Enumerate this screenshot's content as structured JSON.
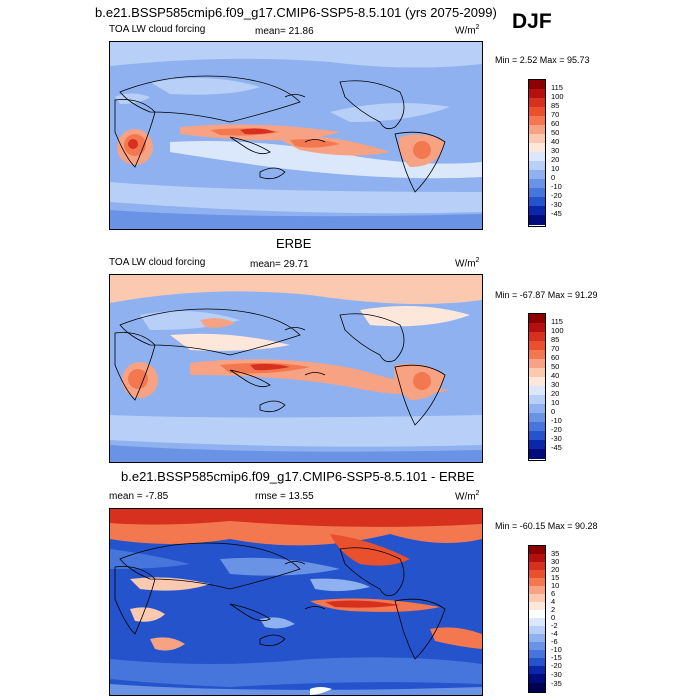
{
  "title": "b.e21.BSSP585cmip6.f09_g17.CMIP6-SSP5-8.5.101 (yrs 2075-2099)",
  "season": "DJF",
  "panels": [
    {
      "label": "TOA LW cloud forcing",
      "mean_text": "mean=  21.86",
      "units": "W/m",
      "units_sup": "2",
      "minmax": "Min =   2.52 Max =  95.73",
      "levels": [
        "115",
        "100",
        "85",
        "70",
        "60",
        "50",
        "40",
        "30",
        "20",
        "10",
        "0",
        "-10",
        "-20",
        "-30",
        "-45"
      ],
      "colors": [
        "#8b0000",
        "#b50f0f",
        "#d8301f",
        "#e8502e",
        "#f4784f",
        "#f8a284",
        "#fbc8b0",
        "#fde6da",
        "#dbe7fb",
        "#b8d0f7",
        "#8fb1ef",
        "#6a92e5",
        "#4675db",
        "#2453cc",
        "#0b26a8",
        "#000c79"
      ]
    },
    {
      "heading": "ERBE",
      "label": "TOA LW cloud forcing",
      "mean_text": "mean=  29.71",
      "units": "W/m",
      "units_sup": "2",
      "minmax": "Min = -67.87 Max =  91.29",
      "levels": [
        "115",
        "100",
        "85",
        "70",
        "60",
        "50",
        "40",
        "30",
        "20",
        "10",
        "0",
        "-10",
        "-20",
        "-30",
        "-45"
      ],
      "colors": [
        "#8b0000",
        "#b50f0f",
        "#d8301f",
        "#e8502e",
        "#f4784f",
        "#f8a284",
        "#fbc8b0",
        "#fde6da",
        "#dbe7fb",
        "#b8d0f7",
        "#8fb1ef",
        "#6a92e5",
        "#4675db",
        "#2453cc",
        "#0b26a8",
        "#000c79"
      ]
    },
    {
      "heading": "b.e21.BSSP585cmip6.f09_g17.CMIP6-SSP5-8.5.101 - ERBE",
      "mean_text": "mean =  -7.85",
      "rmse_text": "rmse =  13.55",
      "units": "W/m",
      "units_sup": "2",
      "minmax": "Min = -60.15 Max =  90.28",
      "levels": [
        "35",
        "30",
        "20",
        "15",
        "10",
        "6",
        "4",
        "2",
        "0",
        "-2",
        "-4",
        "-6",
        "-10",
        "-15",
        "-20",
        "-30",
        "-35"
      ],
      "colors": [
        "#8b0000",
        "#b50f0f",
        "#d8301f",
        "#e8502e",
        "#f4784f",
        "#f8a284",
        "#fbc8b0",
        "#fde6da",
        "#ffffff",
        "#dbe7fb",
        "#b8d0f7",
        "#8fb1ef",
        "#6a92e5",
        "#4675db",
        "#2453cc",
        "#0b26a8",
        "#000c79",
        "#000050"
      ]
    }
  ],
  "chart_data": [
    {
      "type": "heatmap",
      "title": "TOA LW cloud forcing",
      "subtitle": "b.e21.BSSP585cmip6.f09_g17.CMIP6-SSP5-8.5.101 (yrs 2075-2099), DJF",
      "mean": 21.86,
      "min": 2.52,
      "max": 95.73,
      "units": "W/m^2",
      "contour_levels": [
        -45,
        -30,
        -20,
        -10,
        0,
        10,
        20,
        30,
        40,
        50,
        60,
        70,
        85,
        100,
        115
      ]
    },
    {
      "type": "heatmap",
      "title": "ERBE TOA LW cloud forcing",
      "mean": 29.71,
      "min": -67.87,
      "max": 91.29,
      "units": "W/m^2",
      "contour_levels": [
        -45,
        -30,
        -20,
        -10,
        0,
        10,
        20,
        30,
        40,
        50,
        60,
        70,
        85,
        100,
        115
      ]
    },
    {
      "type": "heatmap",
      "title": "b.e21.BSSP585cmip6.f09_g17.CMIP6-SSP5-8.5.101 - ERBE",
      "mean": -7.85,
      "rmse": 13.55,
      "min": -60.15,
      "max": 90.28,
      "units": "W/m^2",
      "contour_levels": [
        -35,
        -30,
        -20,
        -15,
        -10,
        -6,
        -4,
        -2,
        0,
        2,
        4,
        6,
        10,
        15,
        20,
        30,
        35
      ]
    }
  ]
}
